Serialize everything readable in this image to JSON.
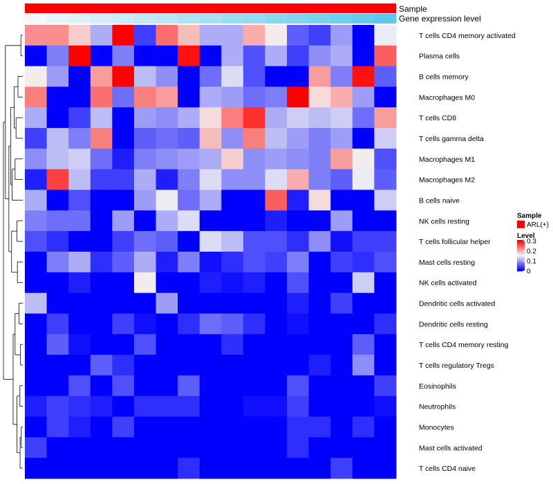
{
  "chart_data": {
    "type": "heatmap",
    "annotations": [
      {
        "label": "Sample",
        "color": "#ff0000"
      },
      {
        "label": "Gene expression level",
        "gradient_start": "#f2f7fb",
        "gradient_end": "#5bc8ee"
      }
    ],
    "rows": [
      "T cells CD4 memory activated",
      "Plasma cells",
      "B cells memory",
      "Macrophages M0",
      "T cells CD8",
      "T cells gamma delta",
      "Macrophages M1",
      "Macrophages M2",
      "B cells naive",
      "NK cells resting",
      "T cells follicular helper",
      "Mast cells resting",
      "NK cells activated",
      "Dendritic cells activated",
      "Dendritic cells resting",
      "T cells CD4 memory resting",
      "T cells regulatory  Tregs",
      "Eosinophils",
      "Neutrophils",
      "Monocytes",
      "Mast cells activated",
      "T cells CD4 naive"
    ],
    "values": [
      [
        0.22,
        0.22,
        0.18,
        0.11,
        0.31,
        0.04,
        0.24,
        0.19,
        0.11,
        0.11,
        0.2,
        0.16,
        0.06,
        0.04,
        0.1,
        0.0,
        0.15
      ],
      [
        0.0,
        0.08,
        0.31,
        0.0,
        0.08,
        0.0,
        0.0,
        0.3,
        0.0,
        0.11,
        0.05,
        0.11,
        0.04,
        0.09,
        0.11,
        0.0,
        0.25
      ],
      [
        0.16,
        0.1,
        0.0,
        0.21,
        0.31,
        0.12,
        0.09,
        0.0,
        0.07,
        0.14,
        0.05,
        0.0,
        0.0,
        0.21,
        0.08,
        0.3,
        0.06
      ],
      [
        0.23,
        0.0,
        0.0,
        0.24,
        0.07,
        0.23,
        0.21,
        0.0,
        0.11,
        0.1,
        0.07,
        0.08,
        0.31,
        0.17,
        0.2,
        0.1,
        0.0
      ],
      [
        0.11,
        0.0,
        0.04,
        0.12,
        0.0,
        0.1,
        0.09,
        0.11,
        0.17,
        0.23,
        0.28,
        0.11,
        0.13,
        0.12,
        0.13,
        0.07,
        0.21
      ],
      [
        0.04,
        0.12,
        0.08,
        0.23,
        0.0,
        0.06,
        0.07,
        0.06,
        0.19,
        0.09,
        0.23,
        0.12,
        0.1,
        0.08,
        0.1,
        0.0,
        0.13
      ],
      [
        0.09,
        0.12,
        0.13,
        0.07,
        0.02,
        0.08,
        0.09,
        0.1,
        0.11,
        0.18,
        0.09,
        0.1,
        0.09,
        0.08,
        0.21,
        0.16,
        0.05
      ],
      [
        0.02,
        0.27,
        0.12,
        0.04,
        0.04,
        0.11,
        0.02,
        0.08,
        0.14,
        0.09,
        0.09,
        0.14,
        0.2,
        0.08,
        0.06,
        0.15,
        0.06
      ],
      [
        0.11,
        0.0,
        0.05,
        0.0,
        0.0,
        0.1,
        0.15,
        0.07,
        0.11,
        0.0,
        0.0,
        0.25,
        0.02,
        0.17,
        0.0,
        0.0,
        0.13
      ],
      [
        0.08,
        0.07,
        0.07,
        0.0,
        0.1,
        0.0,
        0.11,
        0.14,
        0.0,
        0.0,
        0.0,
        0.02,
        0.0,
        0.0,
        0.1,
        0.0,
        0.0
      ],
      [
        0.05,
        0.03,
        0.0,
        0.0,
        0.04,
        0.07,
        0.06,
        0.0,
        0.14,
        0.12,
        0.05,
        0.05,
        0.03,
        0.09,
        0.01,
        0.04,
        0.04
      ],
      [
        0.0,
        0.08,
        0.11,
        0.03,
        0.06,
        0.11,
        0.02,
        0.08,
        0.01,
        0.03,
        0.05,
        0.04,
        0.08,
        0.0,
        0.04,
        0.03,
        0.05
      ],
      [
        0.0,
        0.0,
        0.02,
        0.0,
        0.0,
        0.16,
        0.0,
        0.0,
        0.02,
        0.01,
        0.02,
        0.0,
        0.05,
        0.0,
        0.0,
        0.13,
        0.0
      ],
      [
        0.12,
        0.0,
        0.0,
        0.0,
        0.0,
        0.0,
        0.1,
        0.0,
        0.0,
        0.0,
        0.0,
        0.0,
        0.02,
        0.0,
        0.04,
        0.0,
        0.0
      ],
      [
        0.0,
        0.04,
        0.0,
        0.0,
        0.04,
        0.01,
        0.0,
        0.03,
        0.07,
        0.06,
        0.03,
        0.0,
        0.01,
        0.0,
        0.0,
        0.0,
        0.03
      ],
      [
        0.0,
        0.06,
        0.01,
        0.0,
        0.0,
        0.05,
        0.0,
        0.0,
        0.0,
        0.03,
        0.0,
        0.0,
        0.0,
        0.0,
        0.0,
        0.06,
        0.0
      ],
      [
        0.0,
        0.0,
        0.0,
        0.06,
        0.03,
        0.0,
        0.0,
        0.0,
        0.0,
        0.0,
        0.0,
        0.0,
        0.0,
        0.02,
        0.0,
        0.09,
        0.0
      ],
      [
        0.0,
        0.0,
        0.05,
        0.0,
        0.05,
        0.0,
        0.0,
        0.06,
        0.0,
        0.0,
        0.0,
        0.0,
        0.05,
        0.0,
        0.0,
        0.0,
        0.04
      ],
      [
        0.02,
        0.04,
        0.03,
        0.02,
        0.0,
        0.03,
        0.03,
        0.03,
        0.0,
        0.0,
        0.01,
        0.01,
        0.04,
        0.0,
        0.0,
        0.0,
        0.01
      ],
      [
        0.0,
        0.04,
        0.02,
        0.0,
        0.04,
        0.0,
        0.0,
        0.0,
        0.0,
        0.0,
        0.0,
        0.0,
        0.03,
        0.03,
        0.0,
        0.03,
        0.0
      ],
      [
        0.04,
        0.0,
        0.0,
        0.0,
        0.0,
        0.0,
        0.0,
        0.0,
        0.0,
        0.0,
        0.0,
        0.0,
        0.03,
        0.0,
        0.0,
        0.0,
        0.0
      ],
      [
        0.0,
        0.0,
        0.0,
        0.0,
        0.0,
        0.0,
        0.0,
        0.03,
        0.0,
        0.0,
        0.0,
        0.0,
        0.0,
        0.0,
        0.04,
        0.0,
        0.0
      ]
    ],
    "color_scale": {
      "min": 0,
      "mid": 0.155,
      "max": 0.31,
      "low": "#0000ff",
      "mid_color": "#f4f4f4",
      "high": "#ff0000"
    },
    "legend": {
      "sample_title": "Sample",
      "sample_entry": "ARL(+)",
      "sample_color": "#ff0000",
      "level_title": "Level",
      "level_ticks": [
        {
          "label": "0.3",
          "value": 0.3
        },
        {
          "label": "0.2",
          "value": 0.2
        },
        {
          "label": "0.1",
          "value": 0.1
        },
        {
          "label": "0",
          "value": 0
        }
      ]
    },
    "dendrogram": "rows-left"
  }
}
